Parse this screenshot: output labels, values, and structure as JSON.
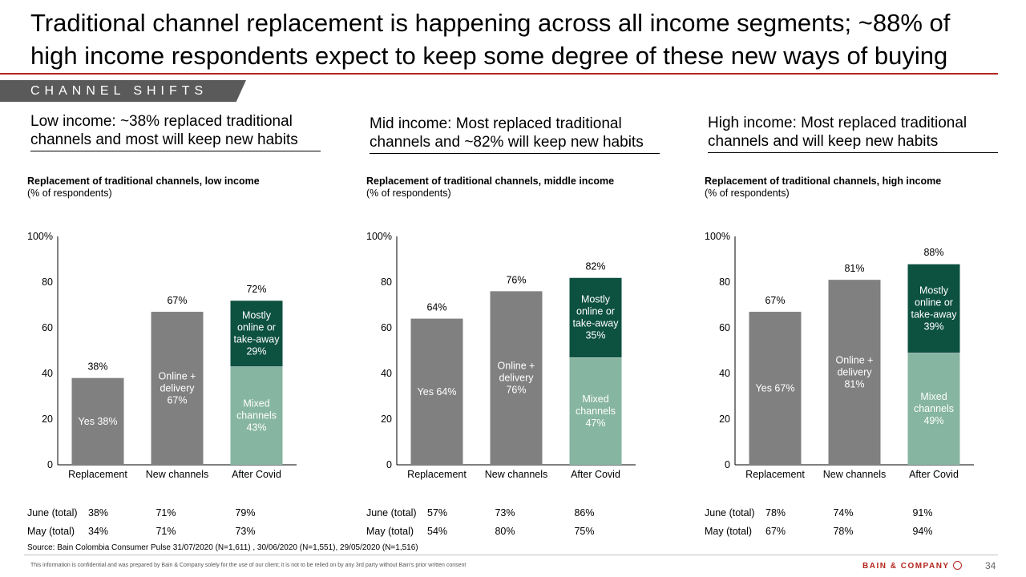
{
  "title": "Traditional channel replacement is happening across all income segments; ~88% of high income respondents expect to keep some degree of these new ways of buying",
  "section_tag": "CHANNEL SHIFTS",
  "colors": {
    "gray": "#808080",
    "dark_green": "#0d5140",
    "light_green": "#86b5a1",
    "accent": "#b3261e"
  },
  "panels": [
    {
      "heading": "Low income: ~38% replaced traditional channels and most will keep new habits",
      "chart_title": "Replacement of traditional channels, low income",
      "chart_subtitle": "(% of respondents)",
      "june_label": "June (total)",
      "may_label": "May (total)",
      "june": [
        "38%",
        "71%",
        "79%"
      ],
      "may": [
        "34%",
        "71%",
        "73%"
      ]
    },
    {
      "heading": "Mid income: Most replaced traditional channels and ~82% will keep new habits",
      "chart_title": "Replacement of traditional channels, middle income",
      "chart_subtitle": "(% of respondents)",
      "june_label": "June (total)",
      "may_label": "May (total)",
      "june": [
        "57%",
        "73%",
        "86%"
      ],
      "may": [
        "54%",
        "80%",
        "75%"
      ]
    },
    {
      "heading": "High income: Most replaced traditional channels and will keep new habits",
      "chart_title": "Replacement of traditional channels, high income",
      "chart_subtitle": "(% of respondents)",
      "june_label": "June (total)",
      "may_label": "May (total)",
      "june": [
        "78%",
        "74%",
        "91%"
      ],
      "may": [
        "67%",
        "78%",
        "94%"
      ]
    }
  ],
  "chart_data": [
    {
      "type": "bar",
      "title": "Replacement of traditional channels, low income",
      "ylabel": "(% of respondents)",
      "ylim": [
        0,
        100
      ],
      "yticks": [
        "0",
        "20",
        "40",
        "60",
        "80",
        "100%"
      ],
      "categories": [
        "Replacement",
        "New channels",
        "After Covid"
      ],
      "bars": [
        {
          "total": 38,
          "total_label": "38%",
          "segments": [
            {
              "value": 38,
              "label": [
                "Yes 38%"
              ],
              "color": "#808080"
            }
          ]
        },
        {
          "total": 67,
          "total_label": "67%",
          "segments": [
            {
              "value": 67,
              "label": [
                "Online +",
                "delivery",
                "67%"
              ],
              "color": "#808080"
            }
          ]
        },
        {
          "total": 72,
          "total_label": "72%",
          "segments": [
            {
              "value": 43,
              "label": [
                "Mixed",
                "channels",
                "43%"
              ],
              "color": "#86b5a1"
            },
            {
              "value": 29,
              "label": [
                "Mostly",
                "online or",
                "take-away",
                "29%"
              ],
              "color": "#0d5140"
            }
          ]
        }
      ]
    },
    {
      "type": "bar",
      "title": "Replacement of traditional channels, middle income",
      "ylabel": "(% of respondents)",
      "ylim": [
        0,
        100
      ],
      "yticks": [
        "0",
        "20",
        "40",
        "60",
        "80",
        "100%"
      ],
      "categories": [
        "Replacement",
        "New channels",
        "After Covid"
      ],
      "bars": [
        {
          "total": 64,
          "total_label": "64%",
          "segments": [
            {
              "value": 64,
              "label": [
                "Yes 64%"
              ],
              "color": "#808080"
            }
          ]
        },
        {
          "total": 76,
          "total_label": "76%",
          "segments": [
            {
              "value": 76,
              "label": [
                "Online +",
                "delivery",
                "76%"
              ],
              "color": "#808080"
            }
          ]
        },
        {
          "total": 82,
          "total_label": "82%",
          "segments": [
            {
              "value": 47,
              "label": [
                "Mixed",
                "channels",
                "47%"
              ],
              "color": "#86b5a1"
            },
            {
              "value": 35,
              "label": [
                "Mostly",
                "online or",
                "take-away",
                "35%"
              ],
              "color": "#0d5140"
            }
          ]
        }
      ]
    },
    {
      "type": "bar",
      "title": "Replacement of traditional channels, high income",
      "ylabel": "(% of respondents)",
      "ylim": [
        0,
        100
      ],
      "yticks": [
        "0",
        "20",
        "40",
        "60",
        "80",
        "100%"
      ],
      "categories": [
        "Replacement",
        "New channels",
        "After Covid"
      ],
      "bars": [
        {
          "total": 67,
          "total_label": "67%",
          "segments": [
            {
              "value": 67,
              "label": [
                "Yes 67%"
              ],
              "color": "#808080"
            }
          ]
        },
        {
          "total": 81,
          "total_label": "81%",
          "segments": [
            {
              "value": 81,
              "label": [
                "Online +",
                "delivery",
                "81%"
              ],
              "color": "#808080"
            }
          ]
        },
        {
          "total": 88,
          "total_label": "88%",
          "segments": [
            {
              "value": 49,
              "label": [
                "Mixed",
                "channels",
                "49%"
              ],
              "color": "#86b5a1"
            },
            {
              "value": 39,
              "label": [
                "Mostly",
                "online or",
                "take-away",
                "39%"
              ],
              "color": "#0d5140"
            }
          ]
        }
      ]
    }
  ],
  "source": "Source: Bain Colombia Consumer Pulse 31/07/2020 (N=1,611) , 30/06/2020 (N=1,551), 29/05/2020 (N=1,516)",
  "disclaimer": "This information is confidential and was prepared by Bain & Company solely for the use of our client; it is not to be relied on by any 3rd party without Bain's prior written consent",
  "logo_text": "BAIN & COMPANY",
  "page_number": "34"
}
